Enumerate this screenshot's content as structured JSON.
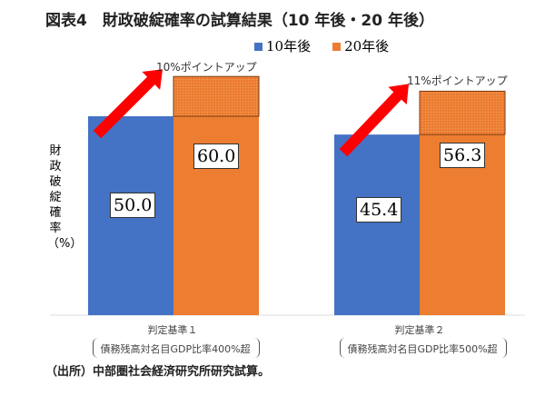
{
  "chart_data": {
    "type": "bar",
    "title": "図表4　財政破綻確率の試算結果（10 年後・20 年後）",
    "ylabel": "財政破綻確率（%）",
    "categories": [
      "判定基準１",
      "判定基準２"
    ],
    "category_notes": [
      "債務残高対名目GDP比率400%超",
      "債務残高対名目GDP比率500%超"
    ],
    "series": [
      {
        "name": "10年後",
        "values": [
          50.0,
          45.4
        ],
        "labels": [
          "50.0",
          "45.4"
        ],
        "color": "#4472c4"
      },
      {
        "name": "20年後",
        "values": [
          60.0,
          56.3
        ],
        "labels": [
          "60.0",
          "56.3"
        ],
        "color": "#ed7d31"
      }
    ],
    "annotations": [
      "10%ポイントアップ",
      "11%ポイントアップ"
    ],
    "ylim": [
      0,
      80
    ],
    "legend": "top-right",
    "grid": false
  },
  "source": "（出所）中部圏社会経済研究所研究試算。"
}
